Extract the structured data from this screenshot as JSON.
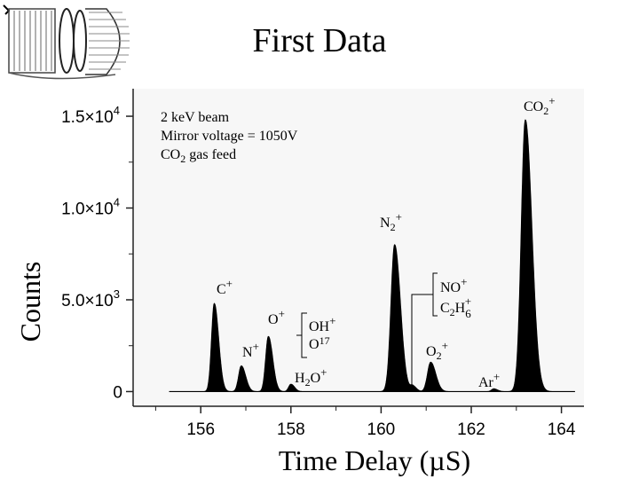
{
  "slide": {
    "title": "First Data"
  },
  "icons": {
    "logo": "mass-spectrometer-logo-icon"
  },
  "chart_data": {
    "type": "line",
    "fill": "area-under-curve",
    "series_color": "#000000",
    "xlabel": "Time Delay (µS)",
    "ylabel": "Counts",
    "xlim": [
      154.5,
      164.5
    ],
    "ylim": [
      -800,
      16500
    ],
    "x_ticks": [
      156,
      158,
      160,
      162,
      164
    ],
    "y_ticks": [
      {
        "value": 0,
        "mantissa": "0",
        "exp": ""
      },
      {
        "value": 5000,
        "mantissa": "5.0×10",
        "exp": "3"
      },
      {
        "value": 10000,
        "mantissa": "1.0×10",
        "exp": "4"
      },
      {
        "value": 15000,
        "mantissa": "1.5×10",
        "exp": "4"
      }
    ],
    "info": {
      "line1": "2 keV beam",
      "line2": "Mirror voltage = 1050V",
      "line3_pre": "CO",
      "line3_sub": "2",
      "line3_post": " gas feed"
    },
    "peaks": [
      {
        "x": 156.3,
        "height": 4800,
        "width": 0.06,
        "label": {
          "base": "C",
          "sub": "",
          "sup": "+"
        }
      },
      {
        "x": 156.9,
        "height": 1400,
        "width": 0.06,
        "label": {
          "base": "N",
          "sub": "",
          "sup": "+"
        }
      },
      {
        "x": 157.5,
        "height": 3000,
        "width": 0.06,
        "label": {
          "base": "O",
          "sub": "",
          "sup": "+"
        }
      },
      {
        "x": 158.0,
        "height": 400,
        "width": 0.05,
        "label": {
          "base": "H",
          "sub": "2",
          "sup": "+",
          "tail": "O"
        }
      },
      {
        "x": 160.3,
        "height": 8000,
        "width": 0.08,
        "label": {
          "base": "N",
          "sub": "2",
          "sup": "+"
        }
      },
      {
        "x": 160.7,
        "height": 300,
        "width": 0.05,
        "label": null
      },
      {
        "x": 161.1,
        "height": 1600,
        "width": 0.07,
        "label": {
          "base": "O",
          "sub": "2",
          "sup": "+"
        }
      },
      {
        "x": 162.5,
        "height": 150,
        "width": 0.05,
        "label": {
          "base": "Ar",
          "sub": "",
          "sup": "+"
        }
      },
      {
        "x": 163.2,
        "height": 14800,
        "width": 0.09,
        "label": {
          "base": "CO",
          "sub": "2",
          "sup": "+"
        }
      }
    ],
    "bracket_labels": {
      "oh": {
        "line1": "OH",
        "line1_sup": "+",
        "line2": "O",
        "line2_sub": "17"
      },
      "no": {
        "line1": "NO",
        "line1_sup": "+",
        "line2a": "C",
        "line2a_sub": "2",
        "line2b": "H",
        "line2b_sub": "6",
        "line2b_sup": "+"
      }
    }
  }
}
